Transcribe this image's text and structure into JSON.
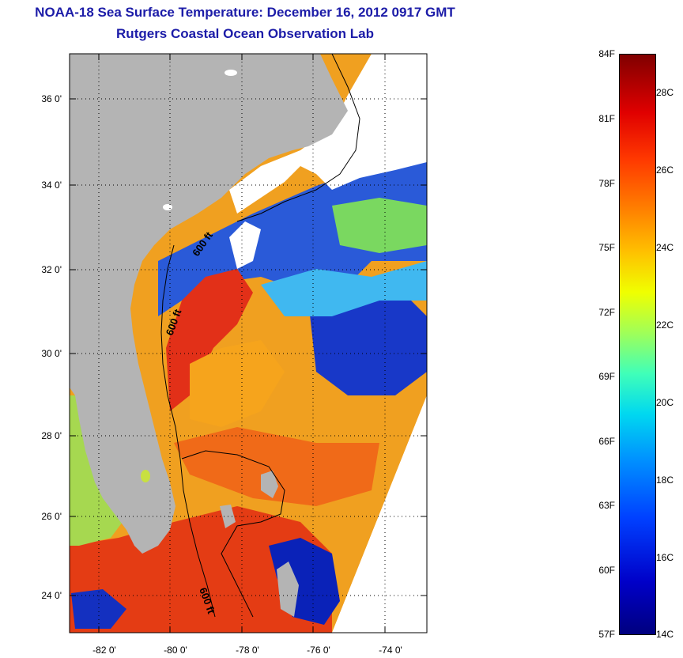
{
  "header": {
    "title_line1": "NOAA-18 Sea Surface Temperature:  December 16, 2012 0917 GMT",
    "title_line2": "Rutgers Coastal Ocean Observation Lab"
  },
  "map": {
    "lat_labels": [
      "36 0'",
      "34 0'",
      "32 0'",
      "30 0'",
      "28 0'",
      "26 0'",
      "24 0'"
    ],
    "lon_labels": [
      "-82 0'",
      "-80 0'",
      "-78 0'",
      "-76 0'",
      "-74 0'"
    ],
    "contour_labels": [
      "600 ft",
      "600 ft",
      "600 ft"
    ],
    "colors": {
      "land": "#b4b4b4",
      "cloud": "#ffffff",
      "warm": "#e82a10",
      "cold": "#0018c0"
    }
  },
  "colorbar": {
    "fahrenheit_labels": [
      "84F",
      "81F",
      "78F",
      "75F",
      "72F",
      "69F",
      "66F",
      "63F",
      "60F",
      "57F"
    ],
    "celsius_labels": [
      "28C",
      "26C",
      "24C",
      "22C",
      "20C",
      "18C",
      "16C",
      "14C"
    ]
  }
}
